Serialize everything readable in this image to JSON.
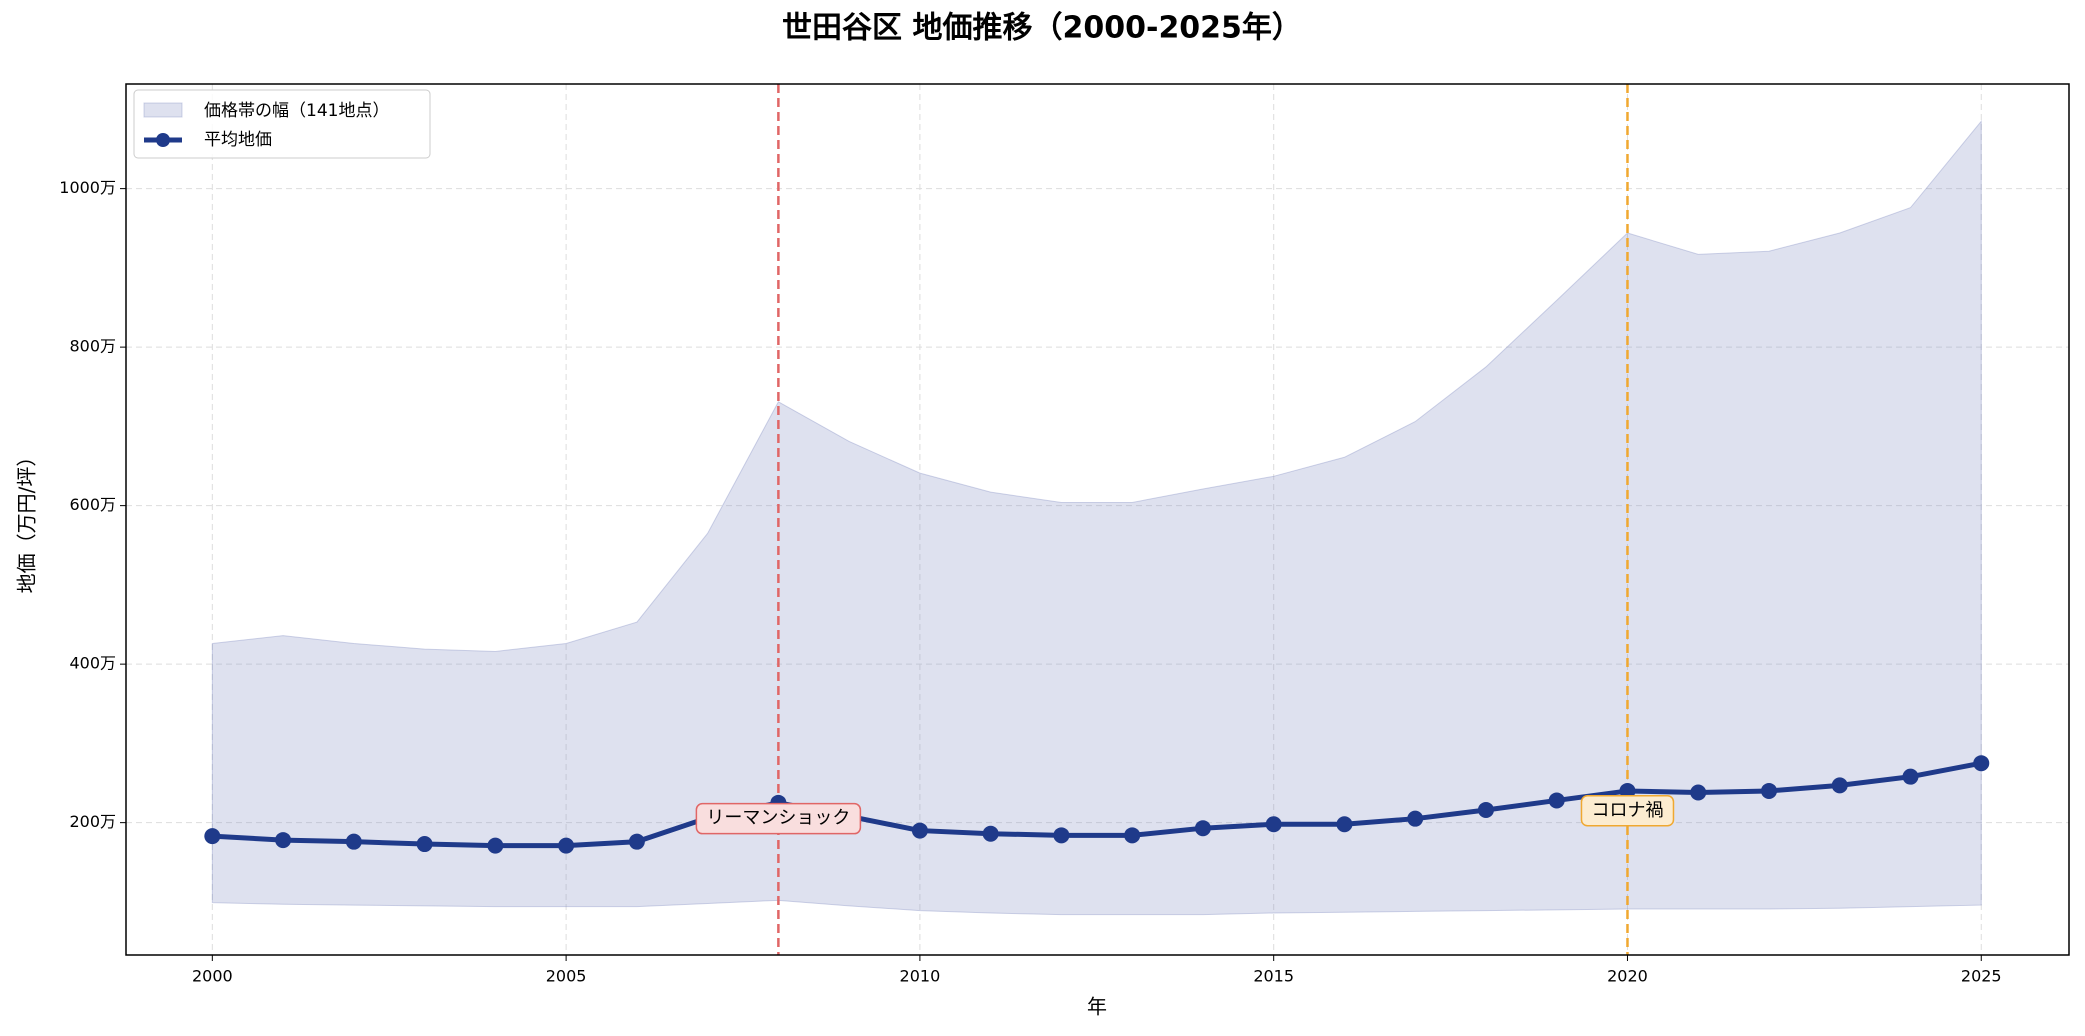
{
  "chart_data": {
    "type": "line",
    "title": "世田谷区 地価推移（2000-2025年）",
    "xlabel": "年",
    "ylabel": "地価（万円/坪）",
    "x": [
      2000,
      2001,
      2002,
      2003,
      2004,
      2005,
      2006,
      2007,
      2008,
      2009,
      2010,
      2011,
      2012,
      2013,
      2014,
      2015,
      2016,
      2017,
      2018,
      2019,
      2020,
      2021,
      2022,
      2023,
      2024,
      2025
    ],
    "series": [
      {
        "name": "平均地価",
        "color": "#1f3a8a",
        "values": [
          183,
          178,
          176,
          173,
          171,
          171,
          176,
          206,
          225,
          208,
          190,
          186,
          184,
          184,
          193,
          198,
          198,
          205,
          216,
          228,
          240,
          238,
          240,
          247,
          258,
          275
        ]
      }
    ],
    "band": {
      "name": "価格帯の幅（141地点）",
      "color": "#8a94c6",
      "upper": [
        426,
        436,
        426,
        419,
        416,
        426,
        453,
        565,
        731,
        681,
        641,
        617,
        604,
        604,
        621,
        637,
        661,
        706,
        775,
        859,
        944,
        917,
        921,
        944,
        976,
        1085
      ],
      "lower": [
        99,
        97,
        96,
        95,
        94,
        94,
        94,
        98,
        102,
        95,
        89,
        86,
        84,
        84,
        84,
        86,
        87,
        88,
        89,
        90,
        91,
        91,
        91,
        92,
        94,
        96
      ]
    },
    "annotations": [
      {
        "text": "リーマンショック",
        "x": 2008,
        "y": 205,
        "color": "#e06666",
        "fill": "#f9dede"
      },
      {
        "text": "コロナ禍",
        "x": 2020,
        "y": 215,
        "color": "#f0a830",
        "fill": "#fcecd0"
      }
    ],
    "xlim": [
      1998.78,
      2026.24
    ],
    "xticks": [
      2000,
      2005,
      2010,
      2015,
      2020,
      2025
    ],
    "ylim": [
      33,
      1132
    ],
    "yticks": [
      {
        "value": 200,
        "label": "200万"
      },
      {
        "value": 400,
        "label": "400万"
      },
      {
        "value": 600,
        "label": "600万"
      },
      {
        "value": 800,
        "label": "800万"
      },
      {
        "value": 1000,
        "label": "1000万"
      }
    ],
    "grid": true,
    "legend": "upper left"
  }
}
